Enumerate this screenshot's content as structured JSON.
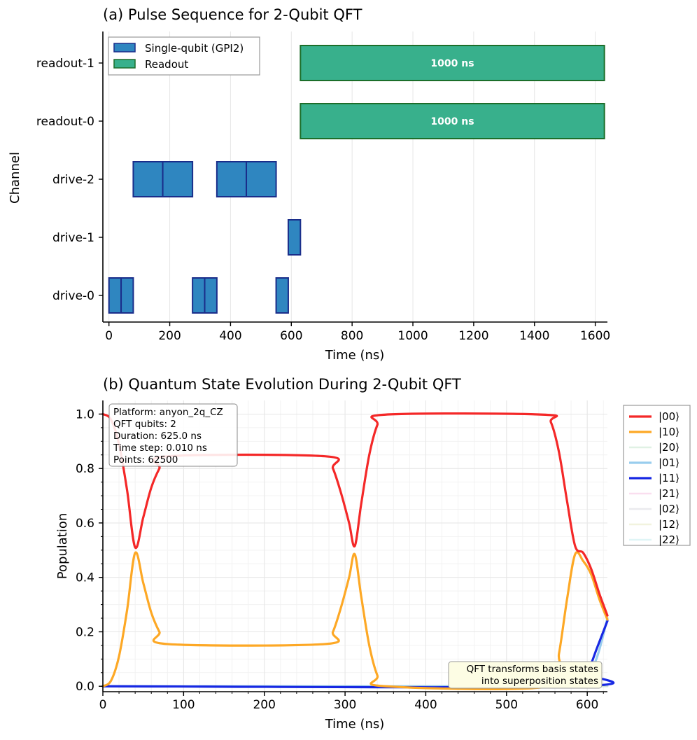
{
  "chart_data": [
    {
      "type": "bar",
      "subtype": "horizontal-timeline",
      "title": "(a) Pulse Sequence for 2-Qubit QFT",
      "xlabel": "Time (ns)",
      "ylabel": "Channel",
      "xlim": [
        -20,
        1640
      ],
      "xticks": [
        0,
        200,
        400,
        600,
        800,
        1000,
        1200,
        1400,
        1600
      ],
      "channels": [
        "drive-0",
        "drive-1",
        "drive-2",
        "readout-0",
        "readout-1"
      ],
      "legend": [
        {
          "label": "Single-qubit (GPI2)",
          "color": "#2f86c0"
        },
        {
          "label": "Readout",
          "color": "#38b08c"
        }
      ],
      "pulses": [
        {
          "channel": 0,
          "start": 0,
          "duration": 40,
          "kind": "single"
        },
        {
          "channel": 0,
          "start": 40,
          "duration": 40,
          "kind": "single"
        },
        {
          "channel": 0,
          "start": 275,
          "duration": 40,
          "kind": "single"
        },
        {
          "channel": 0,
          "start": 315,
          "duration": 40,
          "kind": "single"
        },
        {
          "channel": 0,
          "start": 550,
          "duration": 40,
          "kind": "single"
        },
        {
          "channel": 1,
          "start": 590,
          "duration": 40,
          "kind": "single"
        },
        {
          "channel": 2,
          "start": 80,
          "duration": 97,
          "kind": "single"
        },
        {
          "channel": 2,
          "start": 177,
          "duration": 98,
          "kind": "single"
        },
        {
          "channel": 2,
          "start": 355,
          "duration": 97,
          "kind": "single"
        },
        {
          "channel": 2,
          "start": 452,
          "duration": 98,
          "kind": "single"
        },
        {
          "channel": 3,
          "start": 630,
          "duration": 1000,
          "kind": "readout",
          "label": "1000 ns"
        },
        {
          "channel": 4,
          "start": 630,
          "duration": 1000,
          "kind": "readout",
          "label": "1000 ns"
        }
      ]
    },
    {
      "type": "line",
      "title": "(b) Quantum State Evolution During 2-Qubit QFT",
      "xlabel": "Time (ns)",
      "ylabel": "Population",
      "xlim": [
        0,
        625
      ],
      "ylim": [
        -0.02,
        1.05
      ],
      "xticks": [
        0,
        100,
        200,
        300,
        400,
        500,
        600
      ],
      "yticks": [
        0.0,
        0.2,
        0.4,
        0.6,
        0.8,
        1.0
      ],
      "info_box": [
        "Platform: anyon_2q_CZ",
        "QFT qubits: 2",
        "Duration: 625.0 ns",
        "Time step: 0.010 ns",
        "Points: 62500"
      ],
      "annotation": [
        "QFT transforms basis states",
        "into superposition states"
      ],
      "series": [
        {
          "name": "|00⟩",
          "color": "#f42828",
          "width": 3.2,
          "opacity": 1,
          "points": [
            [
              0,
              1.0
            ],
            [
              10,
              0.98
            ],
            [
              20,
              0.89
            ],
            [
              30,
              0.72
            ],
            [
              40,
              0.51
            ],
            [
              50,
              0.62
            ],
            [
              60,
              0.73
            ],
            [
              70,
              0.8
            ],
            [
              80,
              0.845
            ],
            [
              275,
              0.845
            ],
            [
              285,
              0.8
            ],
            [
              295,
              0.71
            ],
            [
              305,
              0.6
            ],
            [
              312,
              0.515
            ],
            [
              320,
              0.67
            ],
            [
              330,
              0.85
            ],
            [
              340,
              0.96
            ],
            [
              350,
              0.998
            ],
            [
              545,
              0.998
            ],
            [
              555,
              0.97
            ],
            [
              565,
              0.86
            ],
            [
              575,
              0.68
            ],
            [
              585,
              0.515
            ],
            [
              595,
              0.49
            ],
            [
              605,
              0.43
            ],
            [
              615,
              0.34
            ],
            [
              625,
              0.26
            ]
          ]
        },
        {
          "name": "|10⟩",
          "color": "#fda825",
          "width": 3.2,
          "opacity": 1,
          "points": [
            [
              0,
              0.0
            ],
            [
              10,
              0.02
            ],
            [
              20,
              0.11
            ],
            [
              30,
              0.28
            ],
            [
              40,
              0.49
            ],
            [
              50,
              0.38
            ],
            [
              60,
              0.27
            ],
            [
              70,
              0.2
            ],
            [
              80,
              0.155
            ],
            [
              275,
              0.155
            ],
            [
              285,
              0.2
            ],
            [
              295,
              0.29
            ],
            [
              305,
              0.4
            ],
            [
              312,
              0.485
            ],
            [
              320,
              0.33
            ],
            [
              330,
              0.15
            ],
            [
              340,
              0.04
            ],
            [
              350,
              0.0
            ],
            [
              555,
              0.0
            ],
            [
              565,
              0.12
            ],
            [
              575,
              0.32
            ],
            [
              585,
              0.485
            ],
            [
              595,
              0.46
            ],
            [
              605,
              0.41
            ],
            [
              615,
              0.32
            ],
            [
              625,
              0.245
            ]
          ]
        },
        {
          "name": "|20⟩",
          "color": "#a7d7b3",
          "width": 2.6,
          "opacity": 0.35,
          "points": [
            [
              0,
              0.0
            ],
            [
              625,
              0.0
            ]
          ]
        },
        {
          "name": "|01⟩",
          "color": "#8ec8ec",
          "width": 3.2,
          "opacity": 0.9,
          "points": [
            [
              0,
              0.0
            ],
            [
              560,
              0.0
            ],
            [
              590,
              0.01
            ],
            [
              610,
              0.09
            ],
            [
              625,
              0.25
            ]
          ]
        },
        {
          "name": "|11⟩",
          "color": "#1728e3",
          "width": 3.2,
          "opacity": 1,
          "points": [
            [
              0,
              0.0
            ],
            [
              585,
              0.0
            ],
            [
              600,
              0.05
            ],
            [
              612,
              0.14
            ],
            [
              625,
              0.24
            ]
          ]
        },
        {
          "name": "|21⟩",
          "color": "#f4b6dc",
          "width": 2.6,
          "opacity": 0.45,
          "points": [
            [
              0,
              0.0
            ],
            [
              625,
              0.0
            ]
          ]
        },
        {
          "name": "|02⟩",
          "color": "#c3c3cf",
          "width": 2.6,
          "opacity": 0.35,
          "points": [
            [
              0,
              0.0
            ],
            [
              625,
              0.0
            ]
          ]
        },
        {
          "name": "|12⟩",
          "color": "#e2e5b6",
          "width": 2.6,
          "opacity": 0.45,
          "points": [
            [
              0,
              0.0
            ],
            [
              625,
              0.0
            ]
          ]
        },
        {
          "name": "|22⟩",
          "color": "#b8e8ea",
          "width": 2.6,
          "opacity": 0.45,
          "points": [
            [
              0,
              0.0
            ],
            [
              625,
              0.0
            ]
          ]
        }
      ]
    }
  ]
}
